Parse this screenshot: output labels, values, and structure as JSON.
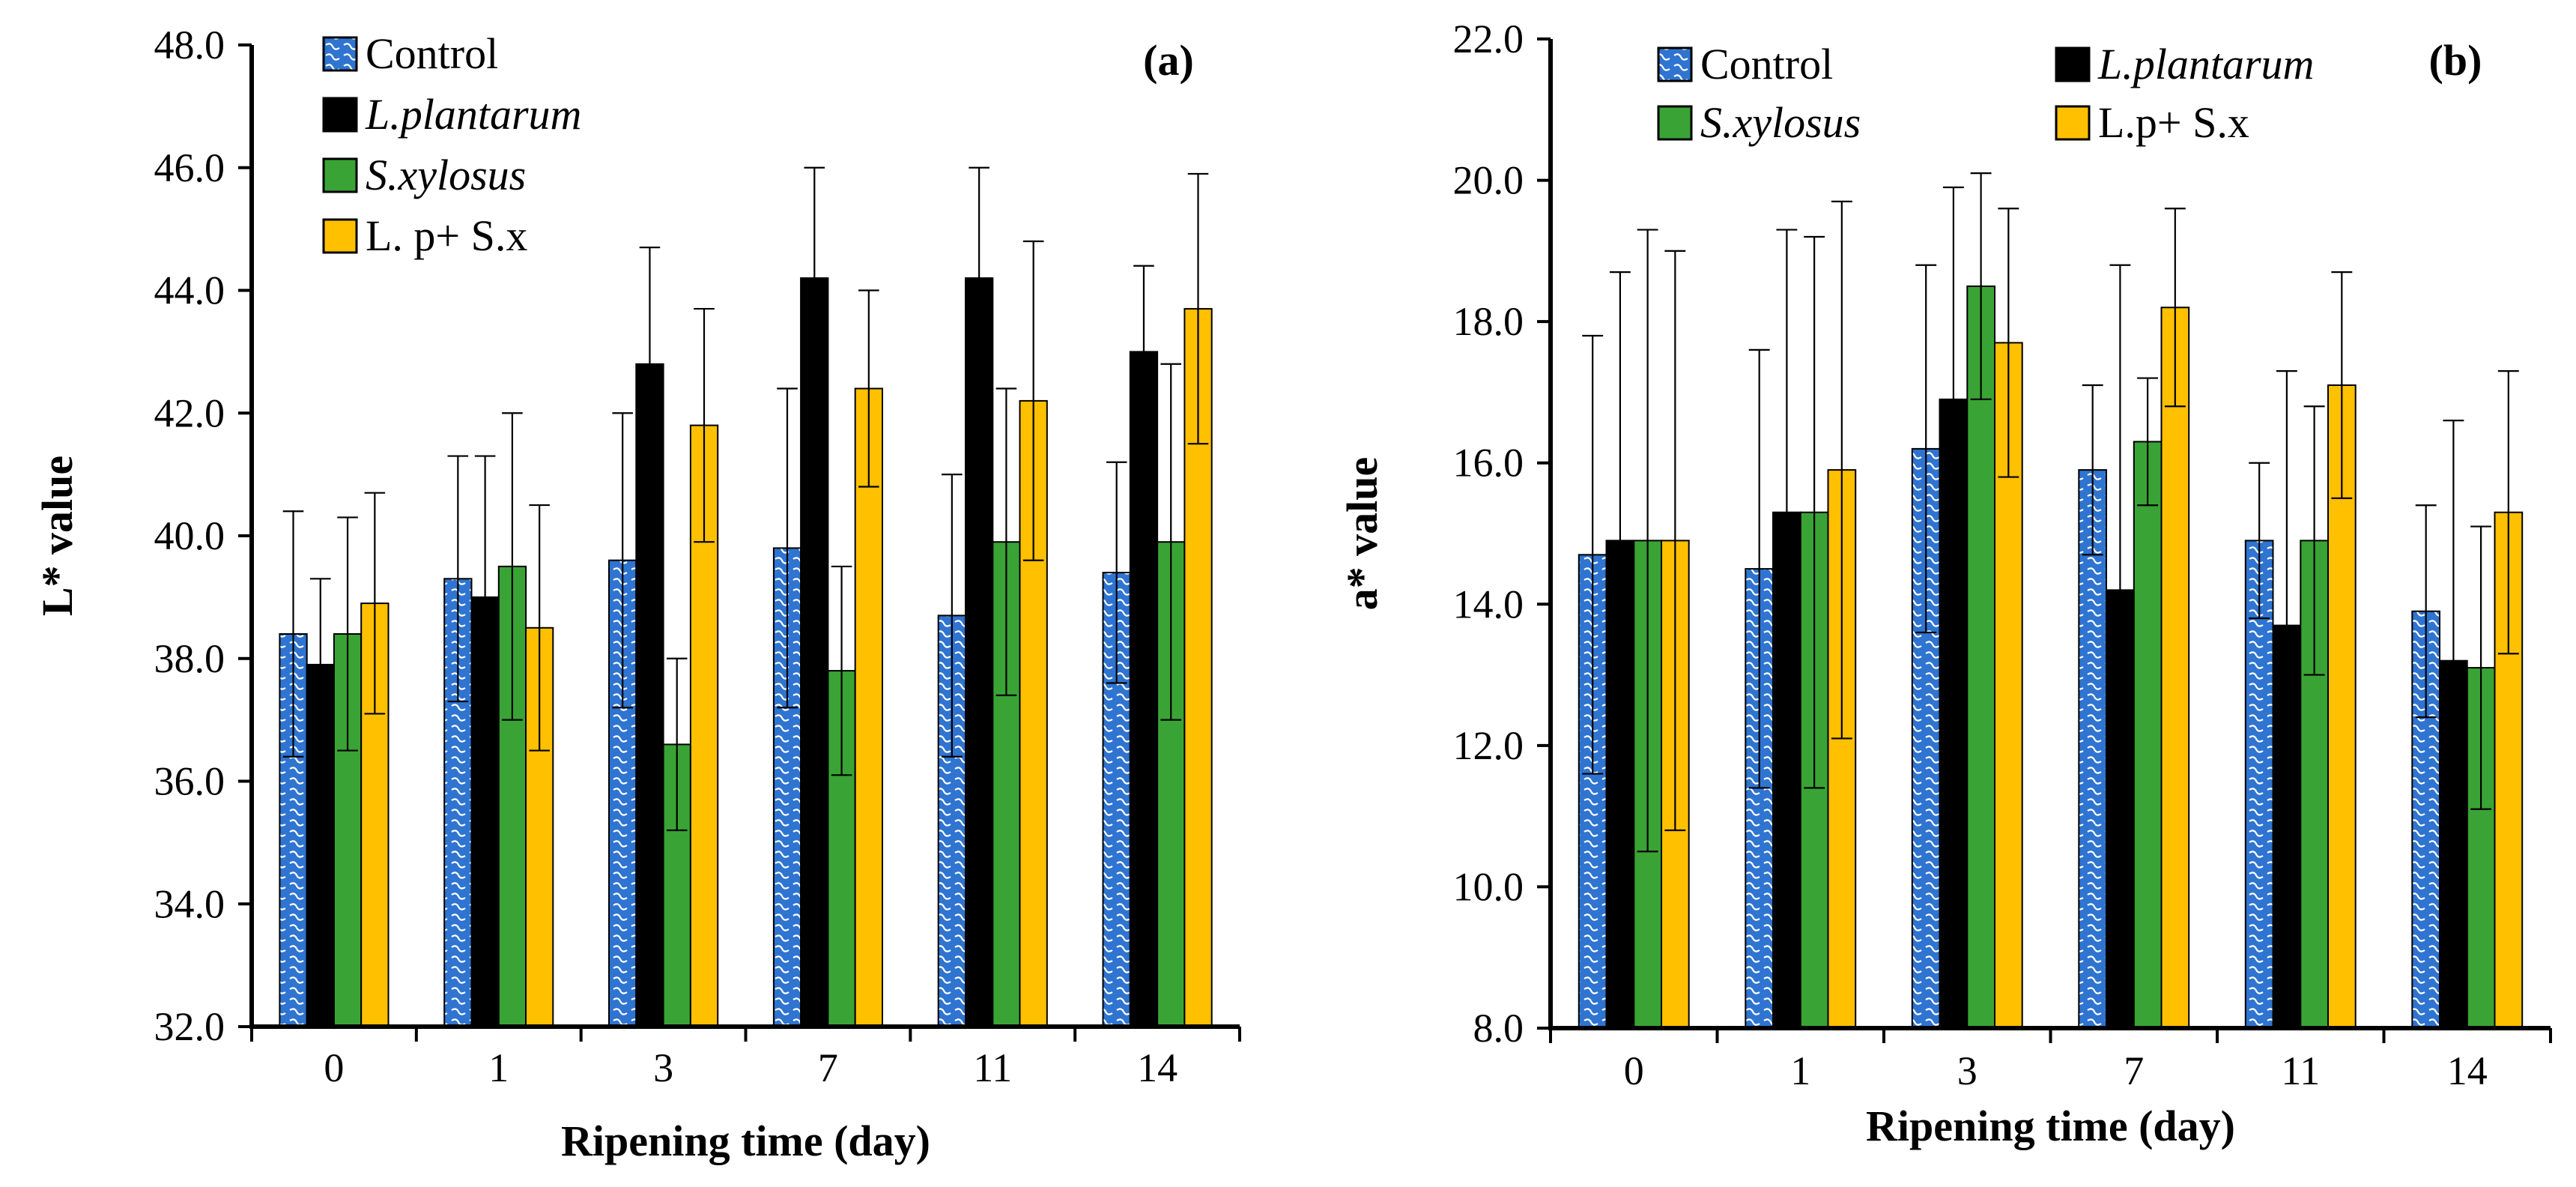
{
  "chart_data": [
    {
      "type": "bar",
      "panel_label": "(a)",
      "title": "",
      "xlabel": "Ripening time (day)",
      "ylabel": "L* value",
      "categories": [
        "0",
        "1",
        "3",
        "7",
        "11",
        "14"
      ],
      "ylim": [
        32.0,
        48.0
      ],
      "ytick_labels": [
        "32.0",
        "34.0",
        "36.0",
        "38.0",
        "40.0",
        "42.0",
        "44.0",
        "46.0",
        "48.0"
      ],
      "legend_position": "top-left",
      "legend_layout": "single-column",
      "series": [
        {
          "name": "Control",
          "italic": false,
          "pattern": "wave",
          "color": "#2f74d0",
          "values": [
            38.4,
            39.3,
            39.6,
            39.8,
            38.7,
            39.4
          ],
          "errors": [
            2.0,
            2.0,
            2.4,
            2.6,
            2.3,
            1.8
          ]
        },
        {
          "name": "L.plantarum",
          "italic": true,
          "pattern": "solid",
          "color": "#000000",
          "values": [
            37.9,
            39.0,
            42.8,
            44.2,
            44.2,
            43.0
          ],
          "errors": [
            1.4,
            2.3,
            1.9,
            1.8,
            1.8,
            1.4
          ]
        },
        {
          "name": "S.xylosus",
          "italic": true,
          "pattern": "solid",
          "color": "#3aa335",
          "values": [
            38.4,
            39.5,
            36.6,
            37.8,
            39.9,
            39.9
          ],
          "errors": [
            1.9,
            2.5,
            1.4,
            1.7,
            2.5,
            2.9
          ]
        },
        {
          "name": "L. p+ S.x",
          "italic": false,
          "pattern": "solid",
          "color": "#ffc000",
          "values": [
            38.9,
            38.5,
            41.8,
            42.4,
            42.2,
            43.7
          ],
          "errors": [
            1.8,
            2.0,
            1.9,
            1.6,
            2.6,
            2.2
          ]
        }
      ]
    },
    {
      "type": "bar",
      "panel_label": "(b)",
      "title": "",
      "xlabel": "Ripening time (day)",
      "ylabel": "a* value",
      "categories": [
        "0",
        "1",
        "3",
        "7",
        "11",
        "14"
      ],
      "ylim": [
        8.0,
        22.0
      ],
      "ytick_labels": [
        "8.0",
        "10.0",
        "12.0",
        "14.0",
        "16.0",
        "18.0",
        "20.0",
        "22.0"
      ],
      "legend_position": "top",
      "legend_layout": "two-column",
      "series": [
        {
          "name": "Control",
          "italic": false,
          "pattern": "wave",
          "color": "#2f74d0",
          "values": [
            14.7,
            14.5,
            16.2,
            15.9,
            14.9,
            13.9
          ],
          "errors": [
            3.1,
            3.1,
            2.6,
            1.2,
            1.1,
            1.5
          ]
        },
        {
          "name": "L.plantarum",
          "italic": true,
          "pattern": "solid",
          "color": "#000000",
          "values": [
            14.9,
            15.3,
            16.9,
            14.2,
            13.7,
            13.2
          ],
          "errors": [
            3.8,
            4.0,
            3.0,
            4.6,
            3.6,
            3.4
          ]
        },
        {
          "name": "S.xylosus",
          "italic": true,
          "pattern": "solid",
          "color": "#3aa335",
          "values": [
            14.9,
            15.3,
            18.5,
            16.3,
            14.9,
            13.1
          ],
          "errors": [
            4.4,
            3.9,
            1.6,
            0.9,
            1.9,
            2.0
          ]
        },
        {
          "name": "L.p+ S.x",
          "italic": false,
          "pattern": "solid",
          "color": "#ffc000",
          "values": [
            14.9,
            15.9,
            17.7,
            18.2,
            17.1,
            15.3
          ],
          "errors": [
            4.1,
            3.8,
            1.9,
            1.4,
            1.6,
            2.0
          ]
        }
      ]
    }
  ]
}
